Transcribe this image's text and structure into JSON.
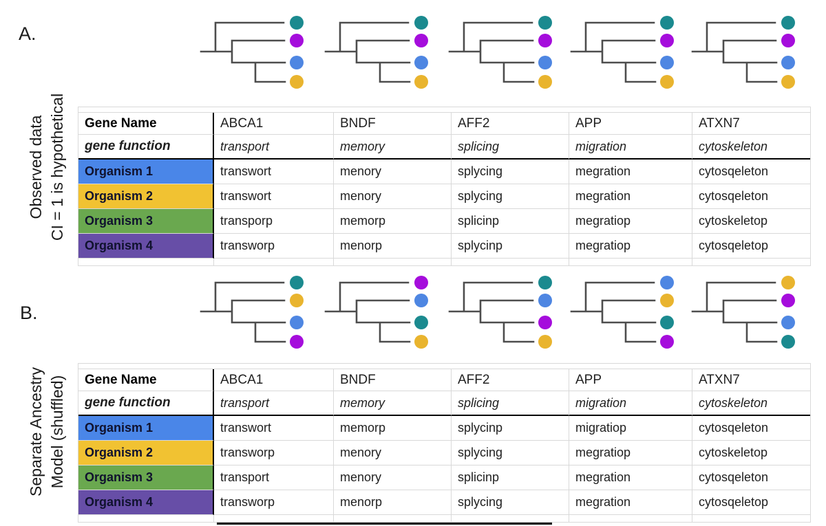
{
  "colors": {
    "dot": {
      "teal": "#1b8a8f",
      "purple": "#a50ddc",
      "blue": "#4e86e2",
      "yellow": "#e9b42e"
    },
    "row": {
      "blue": "#4a86e8",
      "yellow": "#f1c232",
      "green": "#6aa84f",
      "purple": "#674ea7"
    },
    "tree_line": "#4d4d4d",
    "grid_line": "#d9d9d9",
    "divider": "#000000"
  },
  "panels": [
    {
      "label": "A.",
      "side_labels": [
        "Observed data",
        "CI = 1 is hypothetical"
      ],
      "trees": [
        {
          "tips": [
            "teal",
            "purple",
            "blue",
            "yellow"
          ]
        },
        {
          "tips": [
            "teal",
            "purple",
            "blue",
            "yellow"
          ]
        },
        {
          "tips": [
            "teal",
            "purple",
            "blue",
            "yellow"
          ]
        },
        {
          "tips": [
            "teal",
            "purple",
            "blue",
            "yellow"
          ]
        },
        {
          "tips": [
            "teal",
            "purple",
            "blue",
            "yellow"
          ]
        }
      ],
      "table": {
        "gene_name_header": "Gene Name",
        "gene_function_header": "gene function",
        "genes": [
          "ABCA1",
          "BNDF",
          "AFF2",
          "APP",
          "ATXN7"
        ],
        "functions": [
          "transport",
          "memory",
          "splicing",
          "migration",
          "cytoskeleton"
        ],
        "organisms": [
          {
            "name": "Organism 1",
            "color": "blue",
            "values": [
              "transwort",
              "menory",
              "splycing",
              "megration",
              "cytosqeleton"
            ]
          },
          {
            "name": "Organism 2",
            "color": "yellow",
            "values": [
              "transwort",
              "menory",
              "splycing",
              "megration",
              "cytosqeleton"
            ]
          },
          {
            "name": "Organism 3",
            "color": "green",
            "values": [
              "transporp",
              "memorp",
              "splicinp",
              "megratiop",
              "cytoskeletop"
            ]
          },
          {
            "name": "Organism 4",
            "color": "purple",
            "values": [
              "transworp",
              "menorp",
              "splycinp",
              "megratiop",
              "cytosqeletop"
            ]
          }
        ]
      }
    },
    {
      "label": "B.",
      "side_labels": [
        "Separate Ancestry",
        "Model (shuffled)"
      ],
      "trees": [
        {
          "tips": [
            "teal",
            "yellow",
            "blue",
            "purple"
          ]
        },
        {
          "tips": [
            "purple",
            "blue",
            "teal",
            "yellow"
          ]
        },
        {
          "tips": [
            "teal",
            "blue",
            "purple",
            "yellow"
          ]
        },
        {
          "tips": [
            "blue",
            "yellow",
            "teal",
            "purple"
          ]
        },
        {
          "tips": [
            "yellow",
            "purple",
            "blue",
            "teal"
          ]
        }
      ],
      "table": {
        "gene_name_header": "Gene Name",
        "gene_function_header": "gene function",
        "genes": [
          "ABCA1",
          "BNDF",
          "AFF2",
          "APP",
          "ATXN7"
        ],
        "functions": [
          "transport",
          "memory",
          "splicing",
          "migration",
          "cytoskeleton"
        ],
        "organisms": [
          {
            "name": "Organism 1",
            "color": "blue",
            "values": [
              "transwort",
              "memorp",
              "splycinp",
              "migratiop",
              "cytosqeleton"
            ]
          },
          {
            "name": "Organism 2",
            "color": "yellow",
            "values": [
              "transworp",
              "menory",
              "splycing",
              "megratiop",
              "cytoskeletop"
            ]
          },
          {
            "name": "Organism 3",
            "color": "green",
            "values": [
              "transport",
              "menory",
              "splicinp",
              "megration",
              "cytosqeleton"
            ]
          },
          {
            "name": "Organism 4",
            "color": "purple",
            "values": [
              "transworp",
              "menorp",
              "splycing",
              "megration",
              "cytosqeletop"
            ]
          }
        ]
      }
    }
  ]
}
